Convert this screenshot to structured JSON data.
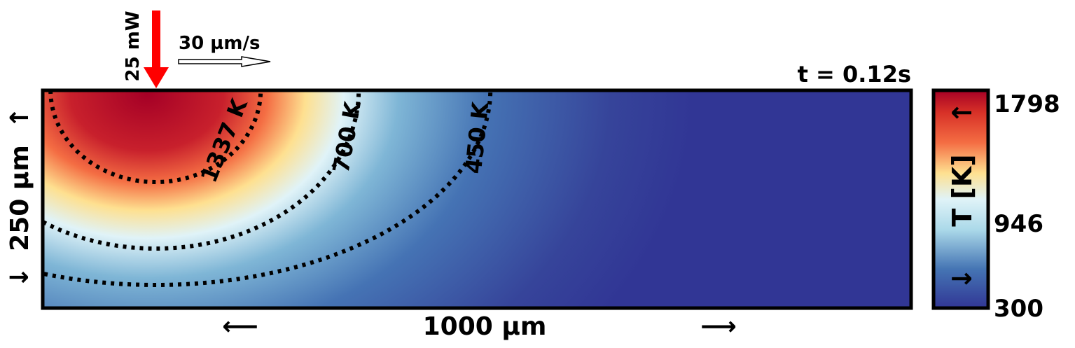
{
  "chart_data": {
    "type": "heatmap",
    "title": "t = 0.12s",
    "xlabel": "1000 µm",
    "ylabel": "250 µm",
    "x_arrow_left": "⟵",
    "x_arrow_right": "⟶",
    "y_arrow_down": "↓",
    "y_arrow_up": "↑",
    "domain": {
      "width_um": 1000,
      "depth_um": 250
    },
    "laser": {
      "power_label": "25 mW",
      "position_x_um": 130,
      "color": "#ff0000"
    },
    "scan": {
      "speed_label": "30 µm/s",
      "direction": "right"
    },
    "contours": [
      {
        "value": 1337,
        "label": "1337 K",
        "label_color": "#000000"
      },
      {
        "value": 700,
        "label": "700 K",
        "label_color": "#ff4500"
      },
      {
        "value": 450,
        "label": "450 K",
        "label_color": "#ff5a36"
      }
    ],
    "colorbar": {
      "label": "T [K]",
      "arrow_up": "↑",
      "arrow_down": "↓",
      "min": 300,
      "max": 1798,
      "ticks": [
        "1798",
        "946",
        "300"
      ],
      "tick_values": [
        1798,
        946,
        300
      ],
      "colormap": "RdYlBu_r"
    }
  }
}
